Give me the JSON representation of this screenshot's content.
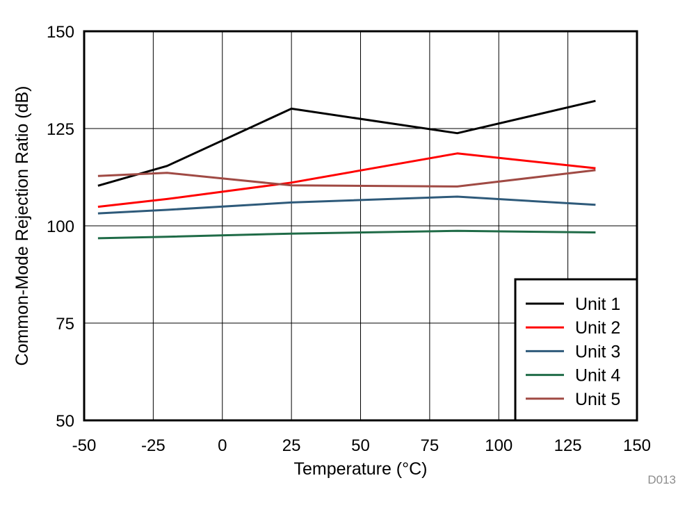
{
  "chart_data": {
    "type": "line",
    "title": "",
    "xlabel": "Temperature (°C)",
    "ylabel": "Common-Mode Rejection Ratio (dB)",
    "xlim": [
      -50,
      150
    ],
    "ylim": [
      50,
      150
    ],
    "xticks": [
      -50,
      -25,
      0,
      25,
      50,
      75,
      100,
      125,
      150
    ],
    "yticks": [
      50,
      75,
      100,
      125,
      150
    ],
    "xtick_labels": [
      "-50",
      "-25",
      "0",
      "25",
      "50",
      "75",
      "100",
      "125",
      "150"
    ],
    "ytick_labels": [
      "50",
      "75",
      "100",
      "125",
      "150"
    ],
    "grid": true,
    "legend_position": "bottom-right",
    "series": [
      {
        "name": "Unit 1",
        "color": "#000000",
        "x": [
          -45,
          -20,
          25,
          85,
          135
        ],
        "y": [
          110.3,
          115.4,
          130.1,
          123.8,
          132.1
        ]
      },
      {
        "name": "Unit 2",
        "color": "#ff0000",
        "x": [
          -45,
          -20,
          25,
          85,
          135
        ],
        "y": [
          104.9,
          106.9,
          111.1,
          118.6,
          114.8
        ]
      },
      {
        "name": "Unit 3",
        "color": "#2e5a7a",
        "x": [
          -45,
          -20,
          25,
          85,
          135
        ],
        "y": [
          103.2,
          104.1,
          106.0,
          107.5,
          105.4
        ]
      },
      {
        "name": "Unit 4",
        "color": "#1f6b47",
        "x": [
          -45,
          -20,
          25,
          85,
          135
        ],
        "y": [
          96.8,
          97.2,
          98.0,
          98.7,
          98.3
        ]
      },
      {
        "name": "Unit 5",
        "color": "#a04a44",
        "x": [
          -45,
          -20,
          25,
          85,
          135
        ],
        "y": [
          112.8,
          113.6,
          110.4,
          110.1,
          114.3
        ]
      }
    ],
    "figure_id": "D013"
  }
}
